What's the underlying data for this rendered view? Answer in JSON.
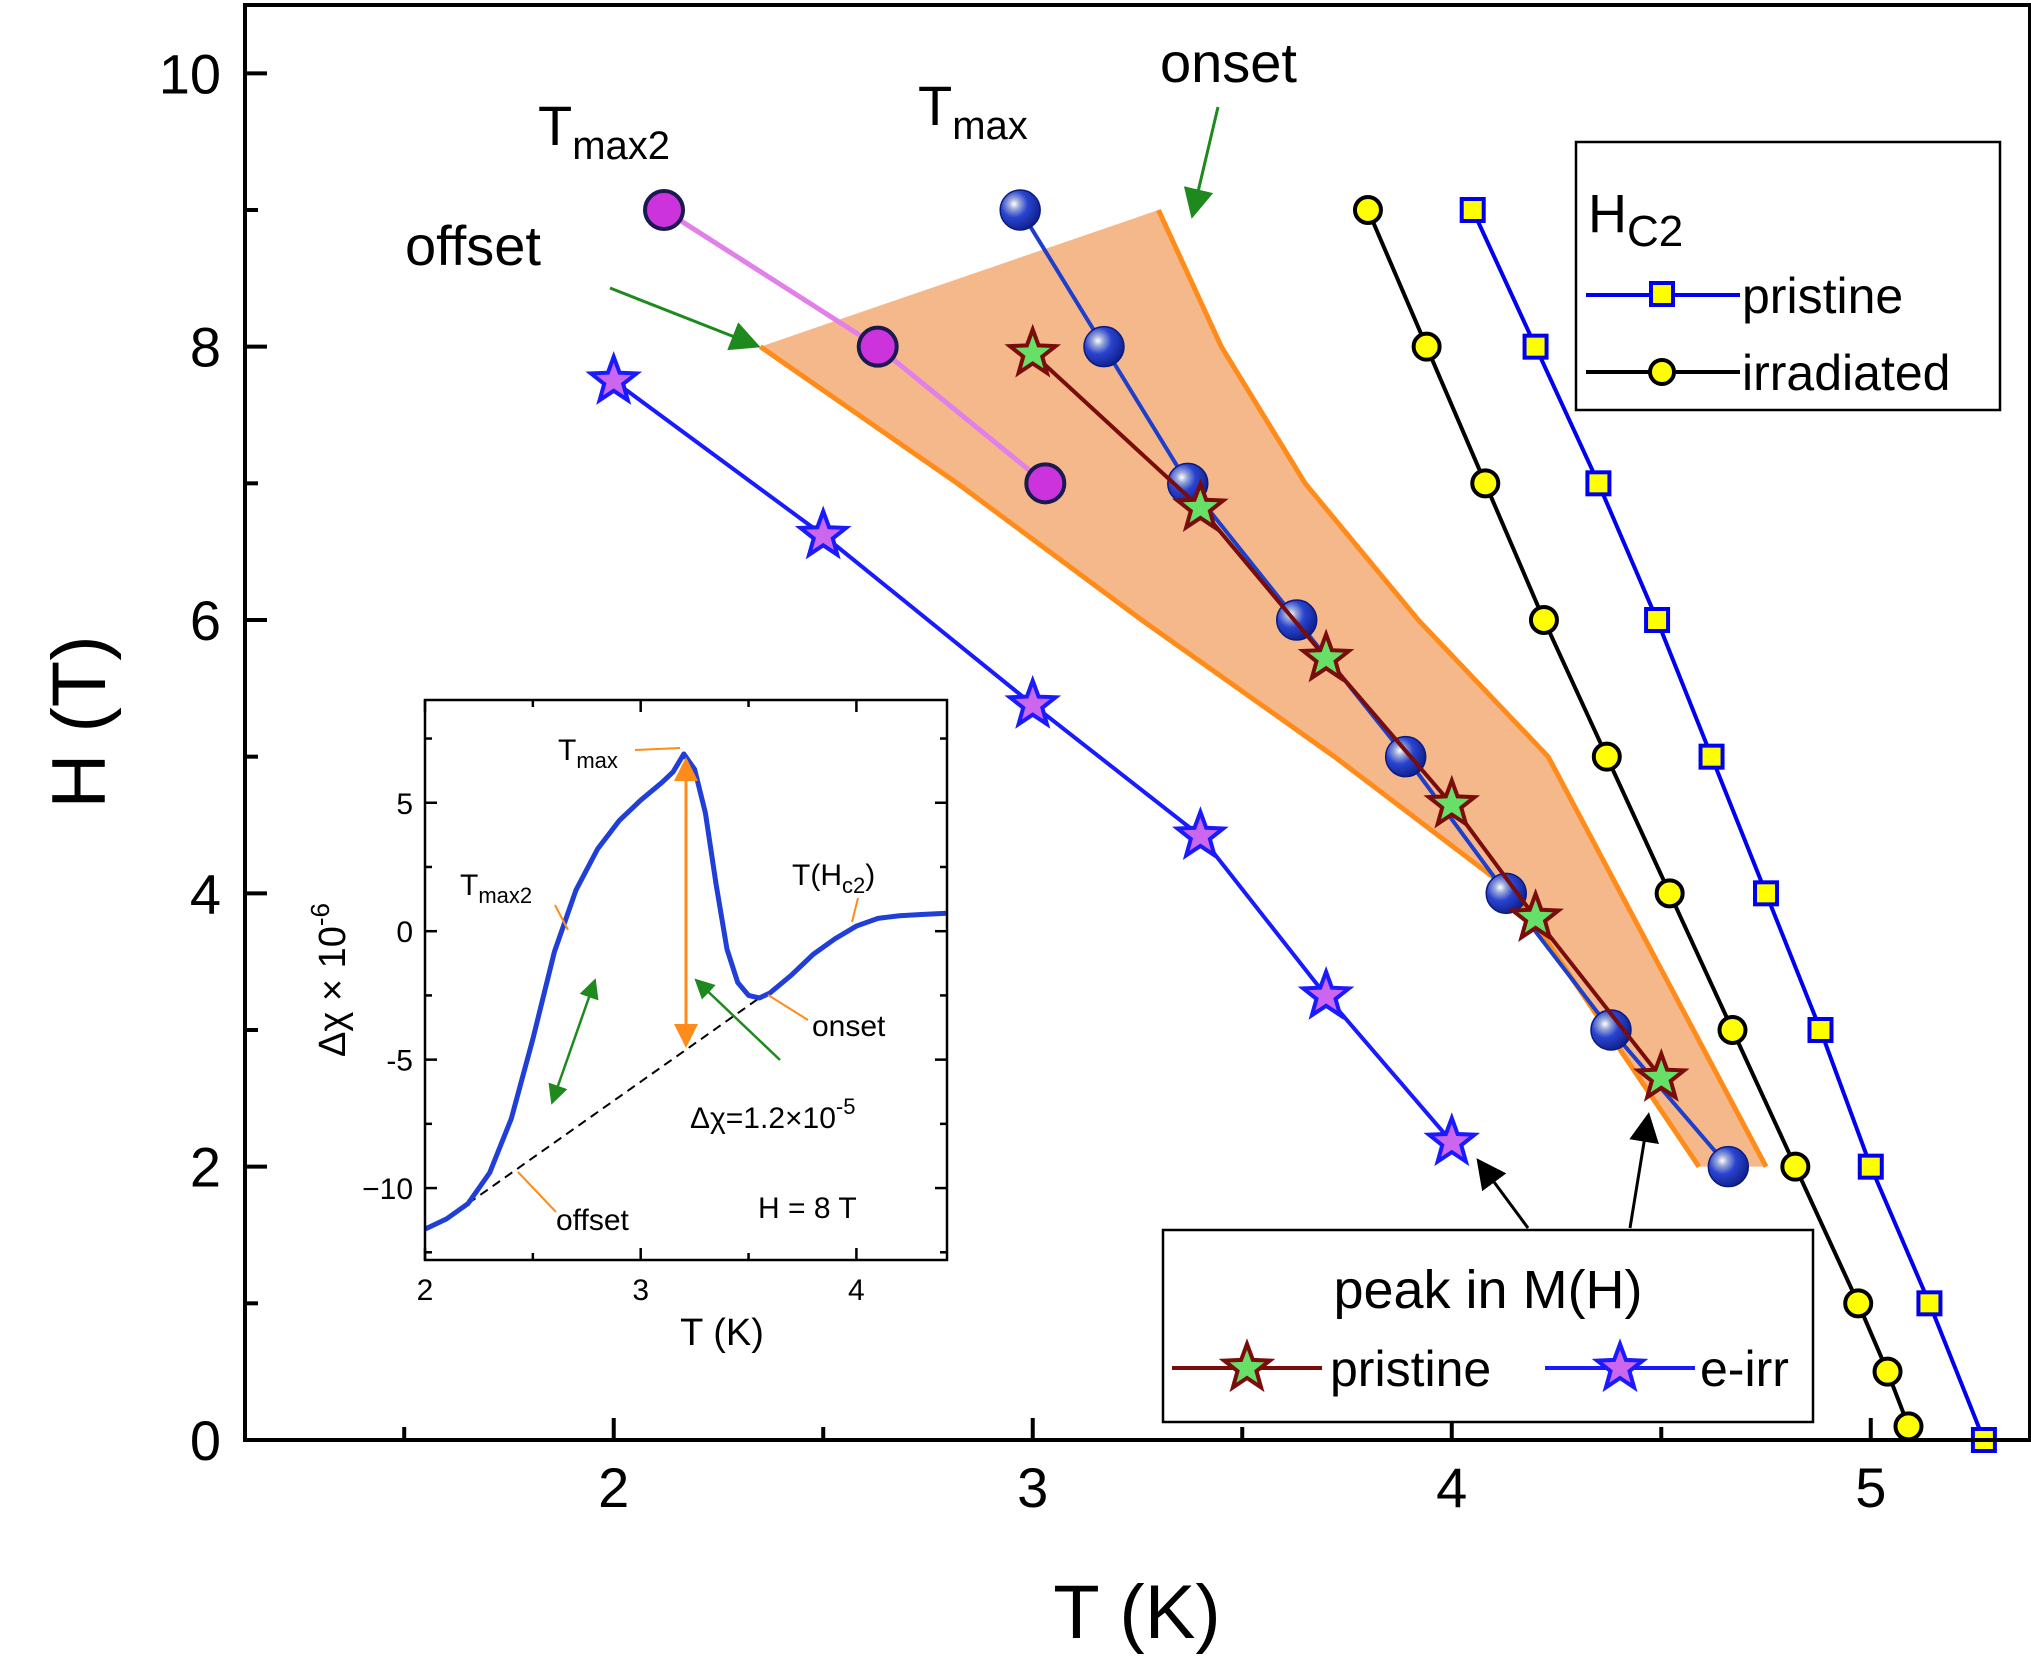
{
  "chart_data": [
    {
      "type": "line",
      "title": "",
      "xlabel": "T (K)",
      "ylabel": "H (T)",
      "xlim": [
        1.12,
        5.38
      ],
      "ylim": [
        0,
        10.5
      ],
      "x_ticks": [
        "2",
        "3",
        "4",
        "5"
      ],
      "y_ticks": [
        "0",
        "2",
        "4",
        "6",
        "8",
        "10"
      ],
      "x_tick_values": [
        2,
        3,
        4,
        5
      ],
      "y_tick_values": [
        0,
        2,
        4,
        6,
        8,
        10
      ],
      "series": [
        {
          "name": "Tmax2",
          "color": "#e080e8",
          "marker": "circle",
          "marker_color": "#cc33dd",
          "x": [
            2.12,
            2.63,
            3.03
          ],
          "y": [
            9,
            8,
            7
          ]
        },
        {
          "name": "Tmax",
          "color": "#1e3fcc",
          "marker": "sphere",
          "marker_color": "#1a35c8",
          "x": [
            2.97,
            3.17,
            3.37,
            3.63,
            3.89,
            4.13,
            4.38,
            4.66
          ],
          "y": [
            9,
            8,
            7,
            6,
            5,
            4,
            3,
            2
          ]
        },
        {
          "name": "peak in M(H) pristine",
          "color": "#7a0c0c",
          "marker": "star",
          "marker_color": "#66e066",
          "x": [
            3.0,
            3.4,
            3.7,
            4.0,
            4.2,
            4.5
          ],
          "y": [
            7.95,
            6.82,
            5.72,
            4.65,
            3.82,
            2.65
          ]
        },
        {
          "name": "peak in M(H) e-irr",
          "color": "#1a1aff",
          "marker": "star",
          "marker_color": "#cc66ee",
          "x": [
            2.0,
            2.5,
            3.0,
            3.4,
            3.7,
            4.0
          ],
          "y": [
            7.75,
            6.62,
            5.38,
            4.42,
            3.25,
            2.18
          ]
        },
        {
          "name": "Hc2 irradiated",
          "color": "#000000",
          "marker": "circle",
          "marker_color": "#ffff00",
          "x": [
            3.8,
            3.94,
            4.08,
            4.22,
            4.37,
            4.52,
            4.67,
            4.82,
            4.97,
            5.04,
            5.09
          ],
          "y": [
            9,
            8,
            7,
            6,
            5,
            4,
            3,
            2,
            1,
            0.5,
            0.1
          ]
        },
        {
          "name": "Hc2 pristine",
          "color": "#0000ee",
          "marker": "square",
          "marker_color": "#ffff00",
          "x": [
            4.05,
            4.2,
            4.35,
            4.49,
            4.62,
            4.75,
            4.88,
            5.0,
            5.14,
            5.27
          ],
          "y": [
            9,
            8,
            7,
            6,
            5,
            4,
            3,
            2,
            1,
            0
          ]
        }
      ],
      "shaded_region": {
        "name": "onset-offset band",
        "color": "#f5b88a",
        "offset_line": {
          "x": [
            2.35,
            2.82,
            3.26,
            3.72,
            4.15,
            4.59
          ],
          "y": [
            8.0,
            7.0,
            6.0,
            5.0,
            4.0,
            2.0
          ]
        },
        "onset_line": {
          "x": [
            3.3,
            3.45,
            3.65,
            3.92,
            4.23,
            4.75
          ],
          "y": [
            9.0,
            8.0,
            7.0,
            6.0,
            5.0,
            2.0
          ]
        }
      },
      "annotations": [
        {
          "text": "onset",
          "target": [
            3.34,
            8.95
          ]
        },
        {
          "text": "offset",
          "target": [
            2.36,
            8.0
          ]
        },
        {
          "text": "Tmax2"
        },
        {
          "text": "Tmax"
        }
      ]
    },
    {
      "type": "line",
      "title": "inset",
      "xlabel": "T (K)",
      "ylabel": "Δχ × 10^-6",
      "xlim": [
        2.0,
        4.42
      ],
      "ylim": [
        -12.8,
        9.0
      ],
      "x_ticks": [
        "2",
        "3",
        "4"
      ],
      "y_ticks": [
        "5",
        "0",
        "-5",
        "−10"
      ],
      "x_tick_values": [
        2,
        3,
        4
      ],
      "y_tick_values": [
        5,
        0,
        -5,
        -10
      ],
      "series": [
        {
          "name": "Δχ(T) at H = 8 T",
          "color": "#1f3fd6",
          "x": [
            2.0,
            2.1,
            2.2,
            2.3,
            2.4,
            2.5,
            2.6,
            2.7,
            2.8,
            2.9,
            3.0,
            3.1,
            3.15,
            3.2,
            3.25,
            3.3,
            3.35,
            3.4,
            3.45,
            3.5,
            3.55,
            3.6,
            3.7,
            3.8,
            3.9,
            4.0,
            4.1,
            4.2,
            4.3,
            4.42
          ],
          "y": [
            -11.6,
            -11.2,
            -10.6,
            -9.4,
            -7.3,
            -4.2,
            -0.8,
            1.6,
            3.2,
            4.3,
            5.1,
            5.8,
            6.2,
            6.9,
            6.3,
            4.6,
            1.8,
            -0.7,
            -2.0,
            -2.5,
            -2.6,
            -2.4,
            -1.7,
            -0.9,
            -0.3,
            0.2,
            0.5,
            0.6,
            0.65,
            0.7
          ]
        },
        {
          "name": "baseline",
          "color": "#000000",
          "dash": true,
          "x": [
            2.2,
            3.55
          ],
          "y": [
            -10.6,
            -2.6
          ]
        }
      ],
      "annotations": [
        {
          "text": "Tmax"
        },
        {
          "text": "Tmax2"
        },
        {
          "text": "T(Hc2)"
        },
        {
          "text": "onset"
        },
        {
          "text": "offset"
        },
        {
          "text": "Δχ=1.2×10-5"
        },
        {
          "text": "H = 8 T"
        }
      ]
    }
  ],
  "labels": {
    "onset": "onset",
    "offset": "offset",
    "tmax_base": "T",
    "tmax_sub": "max",
    "tmax2_base": "T",
    "tmax2_sub": "max2"
  },
  "legend_hc2": {
    "title_base": "H",
    "title_sub": "C2",
    "items": [
      "pristine",
      "irradiated"
    ]
  },
  "legend_peak": {
    "title": "peak in M(H)",
    "items": [
      "pristine",
      "e-irr"
    ]
  },
  "inset": {
    "tmax_base": "T",
    "tmax_sub": "max",
    "tmax2_base": "T",
    "tmax2_sub": "max2",
    "thc2_pre": "T(H",
    "thc2_sub": "c2",
    "thc2_post": ")",
    "onset": "onset",
    "offset": "offset",
    "dchi_base": "Δχ=1.2×10",
    "dchi_sup": "-5",
    "field": "H = 8 T",
    "ylabel_base": "Δχ × 10",
    "ylabel_sup": "-6",
    "xlabel": "T (K)"
  },
  "colors": {
    "band": "#f5b88a",
    "band_edge": "#ff8c1a",
    "green_arrow": "#1e8a1e",
    "orange_arrow": "#ff8c1a"
  }
}
